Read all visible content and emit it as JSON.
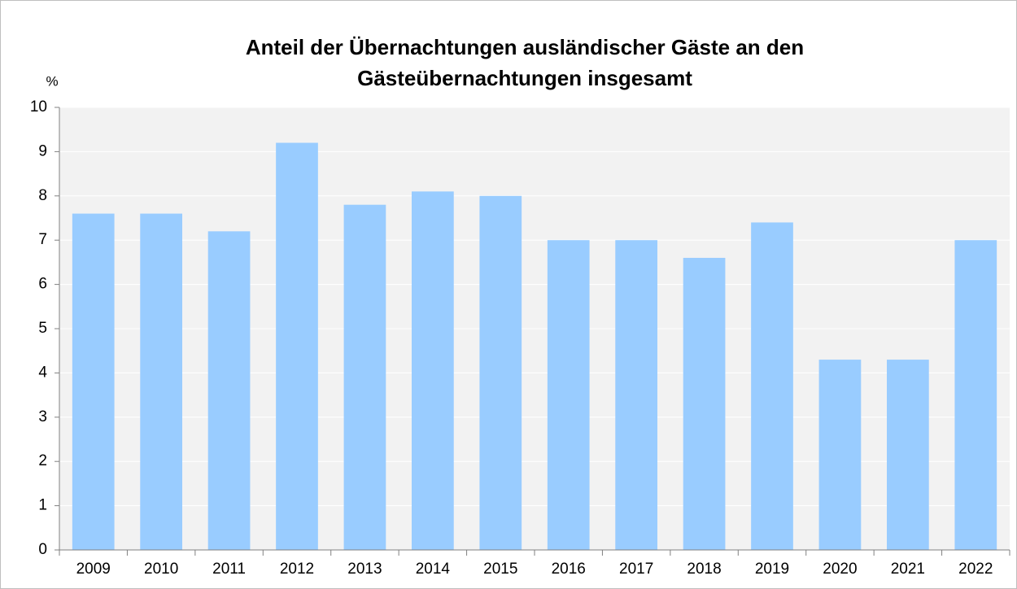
{
  "chart_data": {
    "type": "bar",
    "title": [
      "Anteil der Übernachtungen ausländischer Gäste an den",
      "Gästeübernachtungen insgesamt"
    ],
    "y_label": "%",
    "categories": [
      "2009",
      "2010",
      "2011",
      "2012",
      "2013",
      "2014",
      "2015",
      "2016",
      "2017",
      "2018",
      "2019",
      "2020",
      "2021",
      "2022"
    ],
    "values": [
      7.6,
      7.6,
      7.2,
      9.2,
      7.8,
      8.1,
      8.0,
      7.0,
      7.0,
      6.6,
      7.4,
      4.3,
      4.3,
      7.0
    ],
    "color": "#99ccff",
    "ylim": [
      0,
      10
    ],
    "yticks": [
      0,
      1,
      2,
      3,
      4,
      5,
      6,
      7,
      8,
      9,
      10
    ],
    "grid": true
  }
}
